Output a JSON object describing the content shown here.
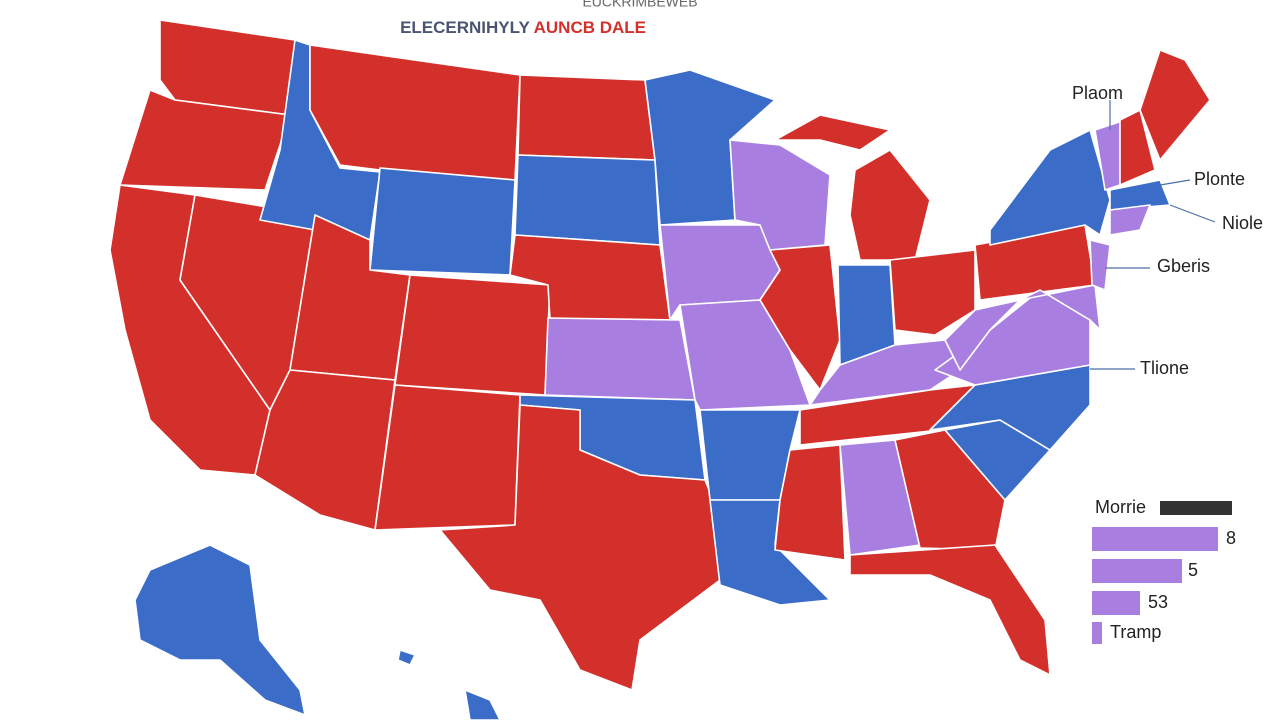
{
  "header": {
    "overline": "EUCKRIMBEWEB",
    "title_part1": "ELECERNIHYLY",
    "title_part2": "AUNCB DALE"
  },
  "labels": [
    "Plaom",
    "Plonte",
    "Niole",
    "Gberis",
    "Tlione"
  ],
  "legend": {
    "title": "Morrie",
    "items": [
      "8",
      "5",
      "53",
      "Tramp"
    ]
  }
}
